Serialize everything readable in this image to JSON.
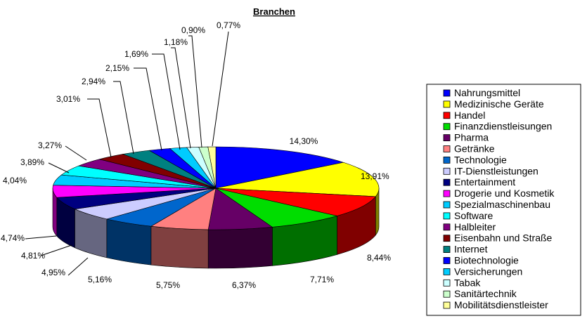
{
  "chart_data": {
    "type": "pie",
    "title": "Branchen",
    "legend_position": "right",
    "value_format": "percent_with_comma",
    "slices": [
      {
        "name": "Nahrungsmittel",
        "value": 14.3,
        "label": "14,30%",
        "color": "#0000FF"
      },
      {
        "name": "Medizinische Geräte",
        "value": 13.91,
        "label": "13,91%",
        "color": "#FFFF00"
      },
      {
        "name": "Handel",
        "value": 8.44,
        "label": "8,44%",
        "color": "#FF0000"
      },
      {
        "name": "Finanzdienstleisungen",
        "value": 7.71,
        "label": "7,71%",
        "color": "#00DD00"
      },
      {
        "name": "Pharma",
        "value": 6.37,
        "label": "6,37%",
        "color": "#660066"
      },
      {
        "name": "Getränke",
        "value": 5.75,
        "label": "5,75%",
        "color": "#FF8080"
      },
      {
        "name": "Technologie",
        "value": 5.16,
        "label": "5,16%",
        "color": "#0066CC"
      },
      {
        "name": "IT-Dienstleistungen",
        "value": 4.95,
        "label": "4,95%",
        "color": "#CCCCFF"
      },
      {
        "name": "Entertainment",
        "value": 4.81,
        "label": "4,81%",
        "color": "#000080"
      },
      {
        "name": "Drogerie und Kosmetik",
        "value": 4.74,
        "label": "4,74%",
        "color": "#FF00FF"
      },
      {
        "name": "Spezialmaschinenbau",
        "value": 4.04,
        "label": "4,04%",
        "color": "#00CCFF"
      },
      {
        "name": "Software",
        "value": 3.89,
        "label": "3,89%",
        "color": "#00FFFF"
      },
      {
        "name": "Halbleiter",
        "value": 3.27,
        "label": "3,27%",
        "color": "#800080"
      },
      {
        "name": "Eisenbahn und Straße",
        "value": 3.01,
        "label": "3,01%",
        "color": "#800000"
      },
      {
        "name": "Internet",
        "value": 2.94,
        "label": "2,94%",
        "color": "#008080"
      },
      {
        "name": "Biotechnologie",
        "value": 2.15,
        "label": "2,15%",
        "color": "#0000FF"
      },
      {
        "name": "Versicherungen",
        "value": 1.69,
        "label": "1,69%",
        "color": "#00CCFF"
      },
      {
        "name": "Tabak",
        "value": 1.18,
        "label": "1,18%",
        "color": "#CCFFFF"
      },
      {
        "name": "Sanitärtechnik",
        "value": 0.9,
        "label": "0,90%",
        "color": "#CCFFCC"
      },
      {
        "name": "Mobilitätsdienstleister",
        "value": 0.77,
        "label": "0,77%",
        "color": "#FFFF99"
      }
    ]
  }
}
